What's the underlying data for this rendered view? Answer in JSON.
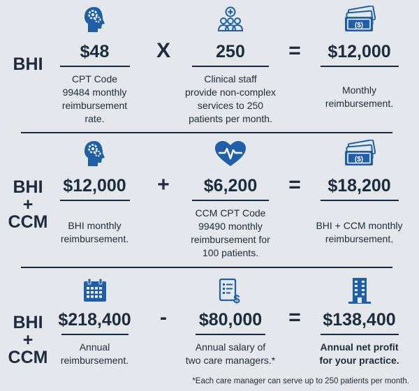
{
  "colors": {
    "text": "#1c2b3f",
    "icon": "#1f5fa8",
    "background": "#e5e8ea"
  },
  "rows": [
    {
      "label_lines": [
        "BHI"
      ],
      "operator": "X",
      "equals": "=",
      "terms": [
        {
          "icon": "head-gears-icon",
          "value": "$48",
          "description": [
            "CPT Code",
            "99484 monthly",
            "reimbursement",
            "rate."
          ]
        },
        {
          "icon": "clinical-staff-icon",
          "value": "250",
          "description": [
            "Clinical staff",
            "provide non-complex",
            "services to 250",
            "patients per month."
          ]
        },
        {
          "icon": "money-stack-icon",
          "value": "$12,000",
          "description": [
            "Monthly",
            "reimbursement."
          ]
        }
      ]
    },
    {
      "label_lines": [
        "BHI",
        "+",
        "CCM"
      ],
      "operator": "+",
      "equals": "=",
      "terms": [
        {
          "icon": "head-gears-icon",
          "value": "$12,000",
          "description": [
            "BHI monthly",
            "reimbursement."
          ]
        },
        {
          "icon": "heart-pulse-icon",
          "value": "$6,200",
          "description": [
            "CCM CPT Code",
            "99490 monthly",
            "reimbursement for",
            "100 patients."
          ]
        },
        {
          "icon": "money-stack-icon",
          "value": "$18,200",
          "description": [
            "BHI + CCM monthly",
            "reimbursement."
          ]
        }
      ]
    },
    {
      "label_lines": [
        "BHI",
        "+",
        "CCM"
      ],
      "operator": "-",
      "equals": "=",
      "terms": [
        {
          "icon": "calendar-icon",
          "value": "$218,400",
          "description": [
            "Annual",
            "reimbursement."
          ]
        },
        {
          "icon": "salary-document-icon",
          "value": "$80,000",
          "description": [
            "Annual salary of",
            "two care managers.*"
          ]
        },
        {
          "icon": "office-building-icon",
          "value": "$138,400",
          "description": [
            "Annual net profit",
            "for your practice."
          ]
        }
      ]
    }
  ],
  "footnote": "*Each care manager can serve up to 250 patients per month."
}
